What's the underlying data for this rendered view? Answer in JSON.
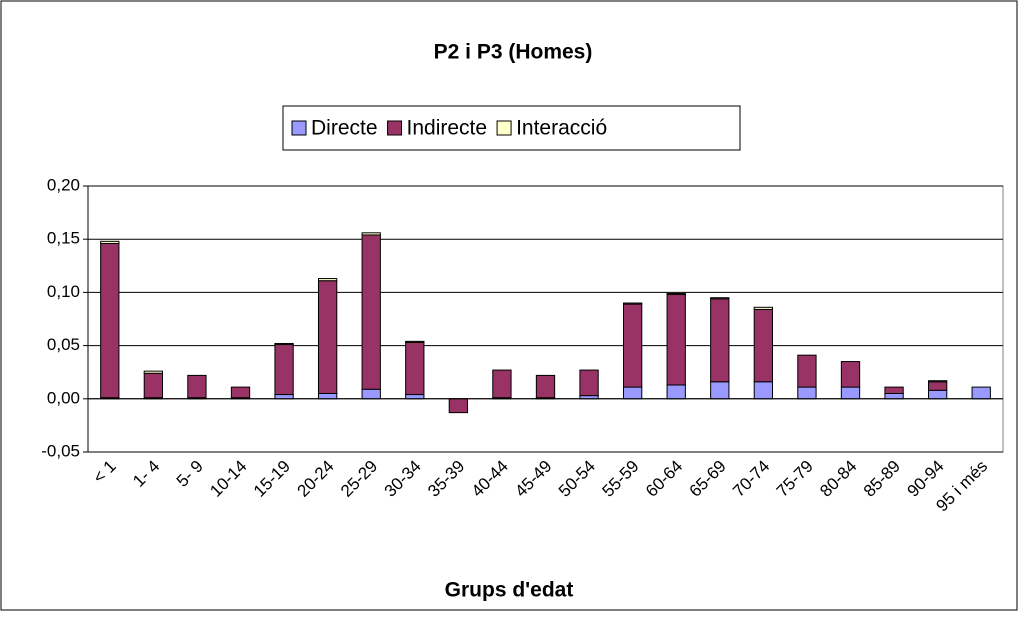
{
  "chart_data": {
    "type": "bar",
    "stacked": true,
    "title": "P2 i P3 (Homes)",
    "x_label": "Grups d'edat",
    "categories": [
      "< 1",
      "1- 4",
      "5- 9",
      "10-14",
      "15-19",
      "20-24",
      "25-29",
      "30-34",
      "35-39",
      "40-44",
      "45-49",
      "50-54",
      "55-59",
      "60-64",
      "65-69",
      "70-74",
      "75-79",
      "80-84",
      "85-89",
      "90-94",
      "95 i més"
    ],
    "series": [
      {
        "name": "Directe",
        "color": "#9999ff",
        "values": [
          0.001,
          0.001,
          0.001,
          0.001,
          0.004,
          0.005,
          0.009,
          0.004,
          0,
          0.001,
          0.001,
          0.003,
          0.011,
          0.013,
          0.016,
          0.016,
          0.011,
          0.011,
          0.005,
          0.008,
          0.011
        ]
      },
      {
        "name": "Indirecte",
        "color": "#993366",
        "values": [
          0.145,
          0.023,
          0.021,
          0.01,
          0.047,
          0.106,
          0.145,
          0.049,
          -0.013,
          0.026,
          0.021,
          0.024,
          0.078,
          0.085,
          0.078,
          0.068,
          0.03,
          0.024,
          0.006,
          0.008,
          0
        ]
      },
      {
        "name": "Interacció",
        "color": "#ffffcc",
        "values": [
          0.002,
          0.002,
          0,
          0,
          0.001,
          0.002,
          0.002,
          0.001,
          0,
          0,
          0,
          0,
          0.001,
          0.001,
          0.001,
          0.002,
          0,
          0,
          0,
          0.001,
          0
        ]
      }
    ],
    "ylim": [
      -0.05,
      0.2
    ],
    "yticks": [
      {
        "value": -0.05,
        "label": "-0,05"
      },
      {
        "value": 0,
        "label": "0,00"
      },
      {
        "value": 0.05,
        "label": "0,05"
      },
      {
        "value": 0.1,
        "label": "0,10"
      },
      {
        "value": 0.15,
        "label": "0,15"
      },
      {
        "value": 0.2,
        "label": "0,20"
      }
    ],
    "grid": true,
    "legend": "top"
  }
}
